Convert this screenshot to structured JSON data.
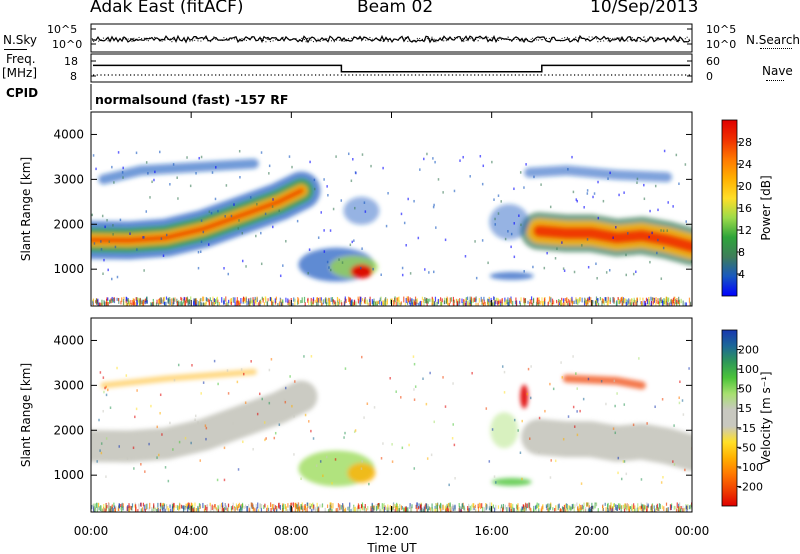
{
  "header": {
    "station": "Adak East (fitACF)",
    "beam": "Beam 02",
    "date": "10/Sep/2013"
  },
  "side_labels": {
    "nsky": "N.Sky",
    "freq_top": "Freq.",
    "freq_unit": "[MHz]",
    "cpid": "CPID",
    "nsearch": "N.Search",
    "nave": "Nave"
  },
  "scan_info": "normalsound (fast) -157 RF",
  "chart_data": [
    {
      "type": "line",
      "panel": "noise",
      "series": [
        {
          "name": "N.Sky",
          "style": "solid"
        },
        {
          "name": "N.Search",
          "style": "dotted"
        }
      ],
      "left_ticks": [
        "10^5",
        "10^0"
      ],
      "right_ticks": [
        "10^5",
        "10^0"
      ],
      "level_fraction": 0.45
    },
    {
      "type": "line",
      "panel": "freq-nave",
      "left_ticks": [
        "18",
        "8"
      ],
      "right_ticks": [
        "60",
        "0"
      ],
      "freq_mhz": [
        {
          "x": [
            0,
            10
          ],
          "y": 13.1
        },
        {
          "x": [
            10,
            18
          ],
          "y": 10.4
        },
        {
          "x": [
            18,
            24
          ],
          "y": 13.1
        }
      ],
      "nave_level": 0
    },
    {
      "type": "heatmap",
      "panel": "power",
      "xlabel": "",
      "ylabel": "Slant Range [km]",
      "xlim": [
        0,
        24
      ],
      "ylim": [
        180,
        4500
      ],
      "yticks": [
        1000,
        2000,
        3000,
        4000
      ],
      "colorbar": {
        "label": "Power [dB]",
        "ticks": [
          "4",
          "8",
          "12",
          "16",
          "20",
          "24",
          "28"
        ],
        "colors": [
          "#0000ff",
          "#1858c0",
          "#3e7d5a",
          "#2ea43a",
          "#9ddb4a",
          "#ffde28",
          "#ffb000",
          "#ff7800",
          "#f03000",
          "#e00000"
        ]
      }
    },
    {
      "type": "heatmap",
      "panel": "velocity",
      "xlabel": "Time UT",
      "ylabel": "Slant Range [km]",
      "xlim": [
        0,
        24
      ],
      "ylim": [
        180,
        4500
      ],
      "yticks": [
        1000,
        2000,
        3000,
        4000
      ],
      "xticks": [
        "00:00",
        "04:00",
        "08:00",
        "12:00",
        "16:00",
        "20:00",
        "00:00"
      ],
      "colorbar": {
        "label": "Velocity [m s⁻¹]",
        "ticks": [
          "200",
          "100",
          "50",
          "15",
          "-15",
          "-50",
          "-100",
          "-200"
        ],
        "colors": [
          "#1838b0",
          "#1c6898",
          "#2e9858",
          "#4cc43a",
          "#a8e070",
          "#c8c8c0",
          "#c8c8c0",
          "#ffe028",
          "#ffb000",
          "#ff7800",
          "#f04000",
          "#e00000"
        ]
      }
    }
  ]
}
